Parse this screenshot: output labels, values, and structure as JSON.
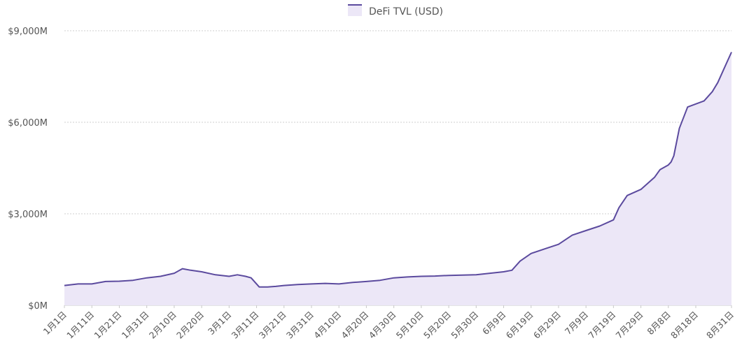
{
  "chart_data": {
    "type": "area",
    "title": "",
    "xlabel": "",
    "ylabel": "",
    "legend_position": "top-center",
    "grid": true,
    "ylim": [
      0,
      9000
    ],
    "y_ticks": [
      0,
      3000,
      6000,
      9000
    ],
    "y_tick_labels": [
      "$0M",
      "$3,000M",
      "$6,000M",
      "$9,000M"
    ],
    "x_tick_labels": [
      "1月1日",
      "1月11日",
      "1月21日",
      "1月31日",
      "2月10日",
      "2月20日",
      "3月1日",
      "3月11日",
      "3月21日",
      "3月31日",
      "4月10日",
      "4月20日",
      "4月30日",
      "5月10日",
      "5月20日",
      "5月30日",
      "6月9日",
      "6月19日",
      "6月29日",
      "7月9日",
      "7月19日",
      "7月29日",
      "8月8日",
      "8月18日",
      "8月31日"
    ],
    "series": [
      {
        "name": "DeFi TVL (USD)",
        "color": "#5b4a9e",
        "fill": "#ece7f7",
        "x": [
          "1月1日",
          "1月6日",
          "1月11日",
          "1月16日",
          "1月21日",
          "1月26日",
          "1月31日",
          "2月5日",
          "2月10日",
          "2月13日",
          "2月16日",
          "2月20日",
          "2月25日",
          "3月1日",
          "3月4日",
          "3月7日",
          "3月9日",
          "3月12日",
          "3月15日",
          "3月18日",
          "3月21日",
          "3月26日",
          "3月31日",
          "4月5日",
          "4月10日",
          "4月15日",
          "4月20日",
          "4月25日",
          "4月30日",
          "5月5日",
          "5月10日",
          "5月15日",
          "5月20日",
          "5月25日",
          "5月30日",
          "6月4日",
          "6月9日",
          "6月12日",
          "6月15日",
          "6月19日",
          "6月24日",
          "6月29日",
          "7月4日",
          "7月9日",
          "7月14日",
          "7月19日",
          "7月21日",
          "7月24日",
          "7月29日",
          "8月3日",
          "8月5日",
          "8月8日",
          "8月9日",
          "8月10日",
          "8月12日",
          "8月15日",
          "8月18日",
          "8月21日",
          "8月24日",
          "8月26日",
          "8月28日",
          "8月31日"
        ],
        "values": [
          650,
          700,
          700,
          780,
          790,
          820,
          900,
          950,
          1050,
          1200,
          1150,
          1100,
          1000,
          950,
          1000,
          950,
          900,
          600,
          600,
          620,
          650,
          680,
          700,
          720,
          700,
          750,
          780,
          820,
          900,
          930,
          950,
          960,
          980,
          990,
          1000,
          1050,
          1100,
          1150,
          1450,
          1700,
          1850,
          2000,
          2300,
          2450,
          2600,
          2800,
          3200,
          3600,
          3800,
          4200,
          4450,
          4600,
          4700,
          4900,
          5800,
          6500,
          6600,
          6700,
          7000,
          7300,
          7700,
          8300
        ]
      }
    ]
  }
}
